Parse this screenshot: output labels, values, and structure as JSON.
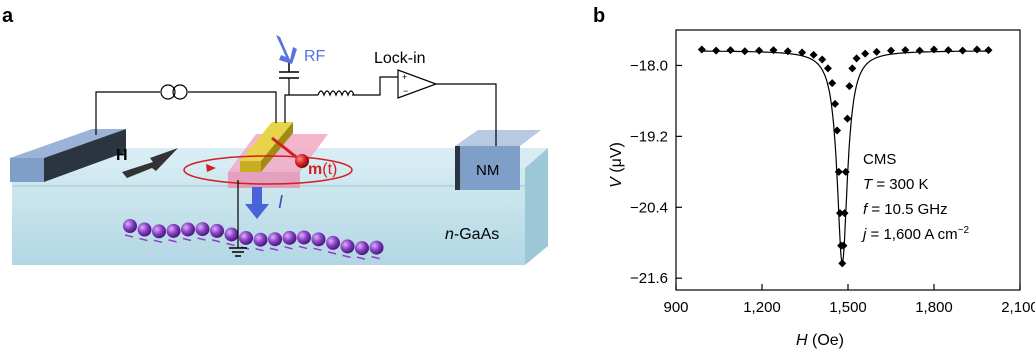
{
  "panel_a": {
    "label": "a",
    "rf_label": "RF",
    "lockin_label": "Lock-in",
    "h_label": "H",
    "m_label_bold": "m",
    "m_label_rest": "(t)",
    "current_label": "I",
    "nm_label": "NM",
    "substrate_label_italic": "n",
    "substrate_label_rest": "-GaAs",
    "colors": {
      "substrate": "#bfe0ea",
      "electrode": "#7f9fc8",
      "ferromagnet": "#d9c23a",
      "pink_region": "#f2a9c4",
      "magnetization": "#d21f1f",
      "spin_atoms": "#8a3fc8",
      "current_arrow": "#4b63d8",
      "rf_arrow": "#5b71e0"
    }
  },
  "panel_b": {
    "label": "b",
    "annotation": {
      "line1": "CMS",
      "line2_sym": "T",
      "line2_val": " = 300 K",
      "line3_sym": "f",
      "line3_val": " = 10.5 GHz",
      "line4_sym": "j",
      "line4_val": " = 1,600 A cm",
      "line4_sup": "−2"
    }
  },
  "chart_data": {
    "type": "scatter",
    "xlabel_sym": "H",
    "xlabel_unit": " (Oe)",
    "ylabel_sym": "V",
    "ylabel_unit": " (μV)",
    "xlim": [
      900,
      2100
    ],
    "ylim": [
      -21.8,
      -17.4
    ],
    "xticks": [
      900,
      1200,
      1500,
      1800,
      2100
    ],
    "xtick_labels": [
      "900",
      "1,200",
      "1,500",
      "1,800",
      "2,100"
    ],
    "yticks": [
      -18.0,
      -19.2,
      -20.4,
      -21.6
    ],
    "ytick_labels": [
      "−18.0",
      "−19.2",
      "−20.4",
      "−21.6"
    ],
    "resonance_field": 1480,
    "linewidth": 22,
    "baseline": -17.75,
    "min_value": -21.35,
    "series": [
      {
        "x": [
          990,
          1040,
          1090,
          1140,
          1190,
          1240,
          1290,
          1340,
          1380,
          1410,
          1430,
          1445,
          1455,
          1462,
          1468,
          1472,
          1476,
          1480,
          1484,
          1488,
          1492,
          1498,
          1505,
          1515,
          1530,
          1560,
          1600,
          1650,
          1700,
          1750,
          1800,
          1850,
          1900,
          1950,
          1990
        ],
        "y": [
          -17.73,
          -17.75,
          -17.74,
          -17.76,
          -17.75,
          -17.74,
          -17.76,
          -17.78,
          -17.82,
          -17.9,
          -18.05,
          -18.3,
          -18.65,
          -19.1,
          -19.8,
          -20.5,
          -21.05,
          -21.35,
          -21.05,
          -20.5,
          -19.8,
          -18.9,
          -18.35,
          -18.05,
          -17.88,
          -17.8,
          -17.77,
          -17.75,
          -17.74,
          -17.75,
          -17.73,
          -17.74,
          -17.75,
          -17.73,
          -17.74
        ]
      }
    ]
  }
}
